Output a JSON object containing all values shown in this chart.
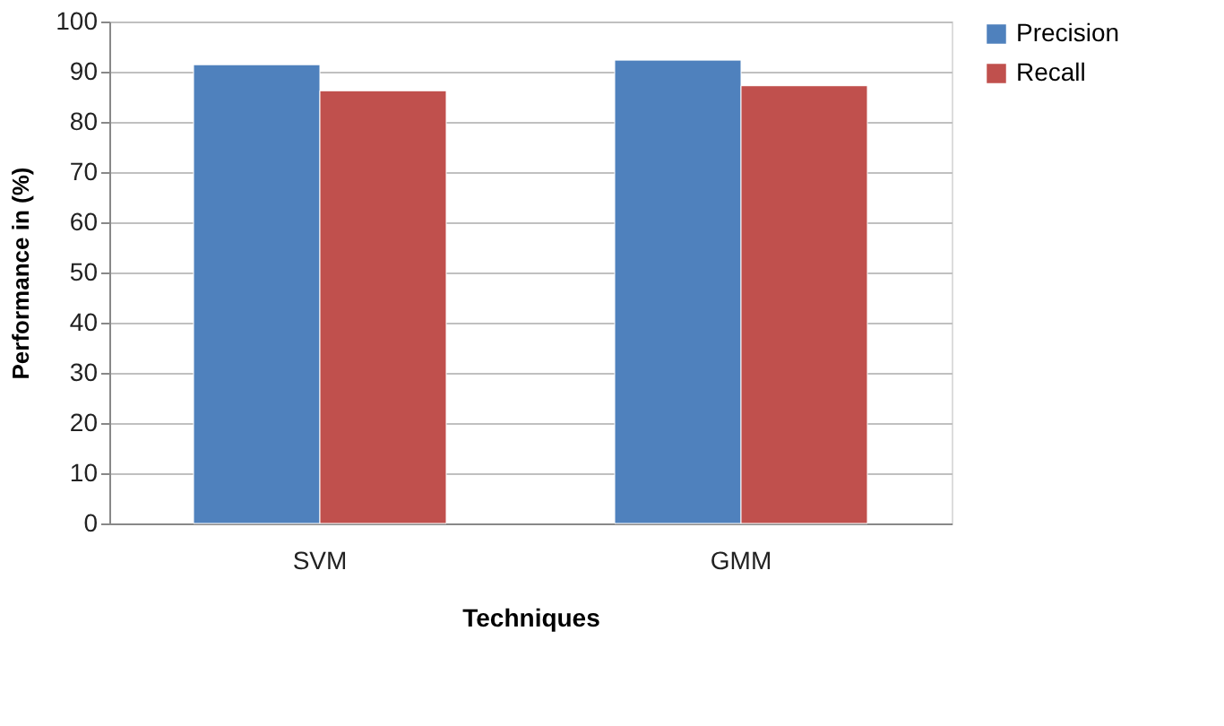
{
  "chart_data": {
    "type": "bar",
    "xlabel": "Techniques",
    "ylabel": "Performance in (%)",
    "categories": [
      "SVM",
      "GMM"
    ],
    "series": [
      {
        "name": "Precision",
        "color": "#4f81bd",
        "values": [
          91.4,
          92.3
        ]
      },
      {
        "name": "Recall",
        "color": "#c0504d",
        "values": [
          86.2,
          87.2
        ]
      }
    ],
    "ylim": [
      0,
      100
    ],
    "yticks": [
      0,
      10,
      20,
      30,
      40,
      50,
      60,
      70,
      80,
      90,
      100
    ],
    "grid": "y",
    "legend": "right"
  }
}
